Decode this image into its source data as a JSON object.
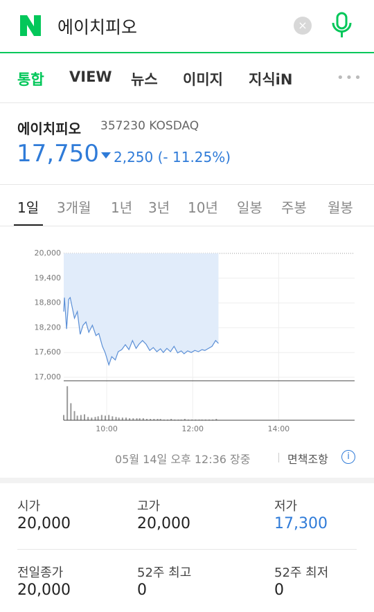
{
  "search": {
    "query": "에이치피오"
  },
  "tabs": [
    "통합",
    "VIEW",
    "뉴스",
    "이미지",
    "지식iN"
  ],
  "stock": {
    "name": "에이치피오",
    "code": "357230 KOSDAQ",
    "price": "17,750",
    "change": "2,250 (- 11.25%)"
  },
  "periods": [
    "1일",
    "3개월",
    "1년",
    "3년",
    "10년",
    "일봉",
    "주봉",
    "월봉"
  ],
  "chart_data": [
    {
      "type": "line",
      "x": [
        540,
        541,
        544,
        547,
        549,
        552,
        555,
        559,
        563,
        567,
        571,
        575,
        580,
        585,
        589,
        594,
        598,
        603,
        607,
        612,
        616,
        621,
        626,
        631,
        636,
        641,
        645,
        650,
        655,
        660,
        665,
        670,
        675,
        679,
        684,
        689,
        694,
        699,
        704,
        708,
        713,
        718,
        723,
        728,
        733,
        737,
        742,
        747,
        752,
        756
      ],
      "series": [
        {
          "color": "#5b8fd6",
          "values": [
            18590,
            18930,
            18170,
            18890,
            18930,
            18680,
            18430,
            18590,
            18040,
            18260,
            18340,
            18090,
            18260,
            18010,
            18060,
            17750,
            17590,
            17300,
            17500,
            17420,
            17620,
            17670,
            17790,
            17670,
            17890,
            17700,
            17800,
            17890,
            17800,
            17650,
            17720,
            17620,
            17690,
            17600,
            17700,
            17620,
            17750,
            17590,
            17640,
            17570,
            17640,
            17600,
            17650,
            17620,
            17670,
            17650,
            17700,
            17750,
            17890,
            17820
          ]
        }
      ],
      "xlim": [
        540,
        946
      ],
      "xticks": [
        {
          "value": 600,
          "label": "10:00"
        },
        {
          "value": 720,
          "label": "12:00"
        },
        {
          "value": 840,
          "label": "14:00"
        }
      ],
      "ylim": [
        17000,
        20000
      ],
      "yticks": [
        {
          "value": 17000,
          "label": "17,000"
        },
        {
          "value": 17600,
          "label": "17,600"
        },
        {
          "value": 18200,
          "label": "18,200"
        },
        {
          "value": 18800,
          "label": "18,800"
        },
        {
          "value": 19400,
          "label": "19,400"
        },
        {
          "value": 20000,
          "label": "20,000"
        }
      ],
      "grid": true
    },
    {
      "type": "bar",
      "x": [
        540,
        545,
        550,
        555,
        559,
        564,
        569,
        574,
        579,
        584,
        588,
        593,
        598,
        603,
        608,
        613,
        617,
        622,
        627,
        632,
        637,
        642,
        646,
        651,
        656,
        661,
        666,
        671,
        675,
        680,
        685,
        690,
        695,
        700,
        704,
        709,
        714,
        719,
        724,
        729,
        733,
        738,
        743,
        748,
        753
      ],
      "values": [
        8,
        52,
        26,
        14,
        7,
        8,
        9,
        5,
        4,
        5,
        6,
        8,
        7,
        8,
        6,
        5,
        4,
        4,
        4,
        3,
        3,
        3,
        3,
        3,
        2,
        2,
        2,
        2,
        2,
        1,
        1,
        2,
        1,
        1,
        1,
        2,
        1,
        1,
        1,
        1,
        1,
        1,
        1,
        1,
        2
      ],
      "color": "#999999",
      "xlim": [
        540,
        946
      ],
      "ylim": [
        0,
        55
      ]
    }
  ],
  "timestamp": "05월 14일 오후 12:36 장중",
  "disclaimer": "면책조항",
  "stats": [
    {
      "label": "시가",
      "value": "20,000"
    },
    {
      "label": "고가",
      "value": "20,000"
    },
    {
      "label": "저가",
      "value": "17,300"
    },
    {
      "label": "전일종가",
      "value": "20,000"
    },
    {
      "label": "52주 최고",
      "value": "0"
    },
    {
      "label": "52주 최저",
      "value": "0"
    }
  ]
}
